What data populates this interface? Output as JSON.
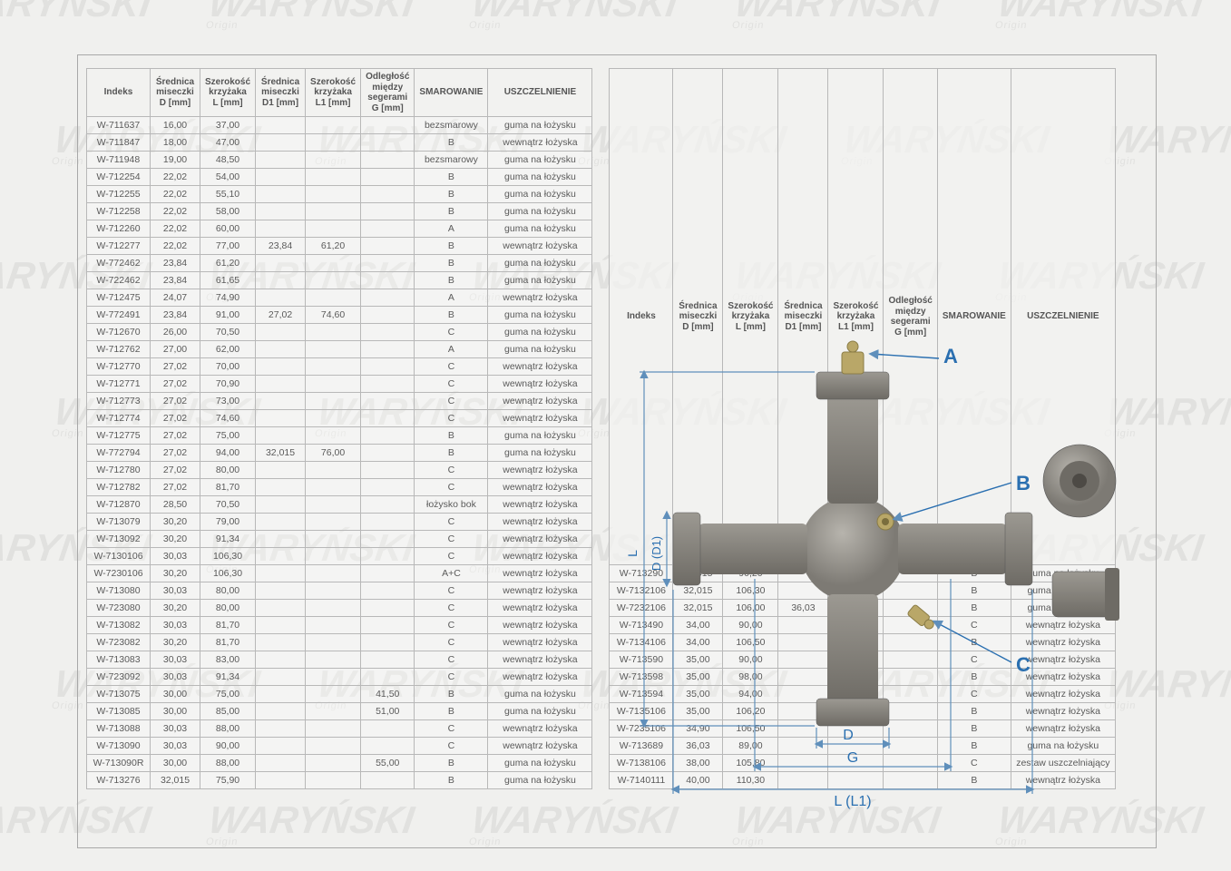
{
  "headers": {
    "indeks": "Indeks",
    "d": "Średnica\nmiseczki\nD [mm]",
    "l": "Szerokość\nkrzyżaka\nL [mm]",
    "d1": "Średnica\nmiseczki\nD1 [mm]",
    "l1": "Szerokość\nkrzyżaka\nL1 [mm]",
    "g": "Odległość\nmiędzy\nsegerami\nG [mm]",
    "sma": "SMAROWANIE",
    "usz": "USZCZELNIENIE"
  },
  "left_rows": [
    [
      "W-711637",
      "16,00",
      "37,00",
      "",
      "",
      "",
      "bezsmarowy",
      "guma na łożysku"
    ],
    [
      "W-711847",
      "18,00",
      "47,00",
      "",
      "",
      "",
      "B",
      "wewnątrz łożyska"
    ],
    [
      "W-711948",
      "19,00",
      "48,50",
      "",
      "",
      "",
      "bezsmarowy",
      "guma na łożysku"
    ],
    [
      "W-712254",
      "22,02",
      "54,00",
      "",
      "",
      "",
      "B",
      "guma na łożysku"
    ],
    [
      "W-712255",
      "22,02",
      "55,10",
      "",
      "",
      "",
      "B",
      "guma na łożysku"
    ],
    [
      "W-712258",
      "22,02",
      "58,00",
      "",
      "",
      "",
      "B",
      "guma na łożysku"
    ],
    [
      "W-712260",
      "22,02",
      "60,00",
      "",
      "",
      "",
      "A",
      "guma na łożysku"
    ],
    [
      "W-712277",
      "22,02",
      "77,00",
      "23,84",
      "61,20",
      "",
      "B",
      "wewnątrz łożyska"
    ],
    [
      "W-772462",
      "23,84",
      "61,20",
      "",
      "",
      "",
      "B",
      "guma na łożysku"
    ],
    [
      "W-722462",
      "23,84",
      "61,65",
      "",
      "",
      "",
      "B",
      "guma na łożysku"
    ],
    [
      "W-712475",
      "24,07",
      "74,90",
      "",
      "",
      "",
      "A",
      "wewnątrz łożyska"
    ],
    [
      "W-772491",
      "23,84",
      "91,00",
      "27,02",
      "74,60",
      "",
      "B",
      "guma na łożysku"
    ],
    [
      "W-712670",
      "26,00",
      "70,50",
      "",
      "",
      "",
      "C",
      "guma na łożysku"
    ],
    [
      "W-712762",
      "27,00",
      "62,00",
      "",
      "",
      "",
      "A",
      "guma na łożysku"
    ],
    [
      "W-712770",
      "27,02",
      "70,00",
      "",
      "",
      "",
      "C",
      "wewnątrz łożyska"
    ],
    [
      "W-712771",
      "27,02",
      "70,90",
      "",
      "",
      "",
      "C",
      "wewnątrz łożyska"
    ],
    [
      "W-712773",
      "27,02",
      "73,00",
      "",
      "",
      "",
      "C",
      "wewnątrz łożyska"
    ],
    [
      "W-712774",
      "27,02",
      "74,60",
      "",
      "",
      "",
      "C",
      "wewnątrz łożyska"
    ],
    [
      "W-712775",
      "27,02",
      "75,00",
      "",
      "",
      "",
      "B",
      "guma na łożysku"
    ],
    [
      "W-772794",
      "27,02",
      "94,00",
      "32,015",
      "76,00",
      "",
      "B",
      "guma na łożysku"
    ],
    [
      "W-712780",
      "27,02",
      "80,00",
      "",
      "",
      "",
      "C",
      "wewnątrz łożyska"
    ],
    [
      "W-712782",
      "27,02",
      "81,70",
      "",
      "",
      "",
      "C",
      "wewnątrz łożyska"
    ],
    [
      "W-712870",
      "28,50",
      "70,50",
      "",
      "",
      "",
      "łożysko bok",
      "wewnątrz łożyska"
    ],
    [
      "W-713079",
      "30,20",
      "79,00",
      "",
      "",
      "",
      "C",
      "wewnątrz łożyska"
    ],
    [
      "W-713092",
      "30,20",
      "91,34",
      "",
      "",
      "",
      "C",
      "wewnątrz łożyska"
    ],
    [
      "W-7130106",
      "30,03",
      "106,30",
      "",
      "",
      "",
      "C",
      "wewnątrz łożyska"
    ],
    [
      "W-7230106",
      "30,20",
      "106,30",
      "",
      "",
      "",
      "A+C",
      "wewnątrz łożyska"
    ],
    [
      "W-713080",
      "30,03",
      "80,00",
      "",
      "",
      "",
      "C",
      "wewnątrz łożyska"
    ],
    [
      "W-723080",
      "30,20",
      "80,00",
      "",
      "",
      "",
      "C",
      "wewnątrz łożyska"
    ],
    [
      "W-713082",
      "30,03",
      "81,70",
      "",
      "",
      "",
      "C",
      "wewnątrz łożyska"
    ],
    [
      "W-723082",
      "30,20",
      "81,70",
      "",
      "",
      "",
      "C",
      "wewnątrz łożyska"
    ],
    [
      "W-713083",
      "30,03",
      "83,00",
      "",
      "",
      "",
      "C",
      "wewnątrz łożyska"
    ],
    [
      "W-723092",
      "30,03",
      "91,34",
      "",
      "",
      "",
      "C",
      "wewnątrz łożyska"
    ],
    [
      "W-713075",
      "30,00",
      "75,00",
      "",
      "",
      "41,50",
      "B",
      "guma na łożysku"
    ],
    [
      "W-713085",
      "30,00",
      "85,00",
      "",
      "",
      "51,00",
      "B",
      "guma na łożysku"
    ],
    [
      "W-713088",
      "30,03",
      "88,00",
      "",
      "",
      "",
      "C",
      "wewnątrz łożyska"
    ],
    [
      "W-713090",
      "30,03",
      "90,00",
      "",
      "",
      "",
      "C",
      "wewnątrz łożyska"
    ],
    [
      "W-713090R",
      "30,00",
      "88,00",
      "",
      "",
      "55,00",
      "B",
      "guma na łożysku"
    ],
    [
      "W-713276",
      "32,015",
      "75,90",
      "",
      "",
      "",
      "B",
      "guma na łożysku"
    ]
  ],
  "right_rows": [
    [
      "W-713290",
      "32,015",
      "90,20",
      "",
      "",
      "",
      "B",
      "guma na łożysku"
    ],
    [
      "W-7132106",
      "32,015",
      "106,30",
      "",
      "",
      "",
      "B",
      "guma na łożysku"
    ],
    [
      "W-7232106",
      "32,015",
      "106,00",
      "36,03",
      "88,80",
      "",
      "B",
      "guma na łożysku"
    ],
    [
      "W-713490",
      "34,00",
      "90,00",
      "",
      "",
      "",
      "C",
      "wewnątrz łożyska"
    ],
    [
      "W-7134106",
      "34,00",
      "106,50",
      "",
      "",
      "",
      "B",
      "wewnątrz łożyska"
    ],
    [
      "W-713590",
      "35,00",
      "90,00",
      "",
      "",
      "",
      "C",
      "wewnątrz łożyska"
    ],
    [
      "W-713598",
      "35,00",
      "98,00",
      "",
      "",
      "",
      "B",
      "wewnątrz łożyska"
    ],
    [
      "W-713594",
      "35,00",
      "94,00",
      "",
      "",
      "",
      "C",
      "wewnątrz łożyska"
    ],
    [
      "W-7135106",
      "35,00",
      "106,20",
      "",
      "",
      "",
      "B",
      "wewnątrz łożyska"
    ],
    [
      "W-7235106",
      "34,90",
      "106,50",
      "",
      "",
      "",
      "B",
      "wewnątrz łożyska"
    ],
    [
      "W-713689",
      "36,03",
      "89,00",
      "",
      "",
      "",
      "B",
      "guma na łożysku"
    ],
    [
      "W-7138106",
      "38,00",
      "105,80",
      "",
      "",
      "",
      "C",
      "zestaw uszczelniający"
    ],
    [
      "W-7140111",
      "40,00",
      "110,30",
      "",
      "",
      "",
      "B",
      "wewnątrz łożyska"
    ]
  ],
  "diagram": {
    "body_color": "#9a9791",
    "cap_color": "#83817b",
    "nipple_color": "#b9a768",
    "label_color": "#2a6fb0",
    "dim_color": "#5f8fbb",
    "labels": {
      "A": "A",
      "B": "B",
      "C": "C",
      "D": "D",
      "G": "G",
      "L": "L (L1)",
      "vert": "D (D1)",
      "Lside": "L"
    }
  },
  "watermark_text": "WARYŃSKI",
  "watermark_sub": "Origin",
  "colors": {
    "page_bg": "#f0f0ee",
    "border": "#b8b8b8",
    "text": "#5a5a5a"
  },
  "typography": {
    "body_pt": 10.5,
    "header_pt": 10
  }
}
